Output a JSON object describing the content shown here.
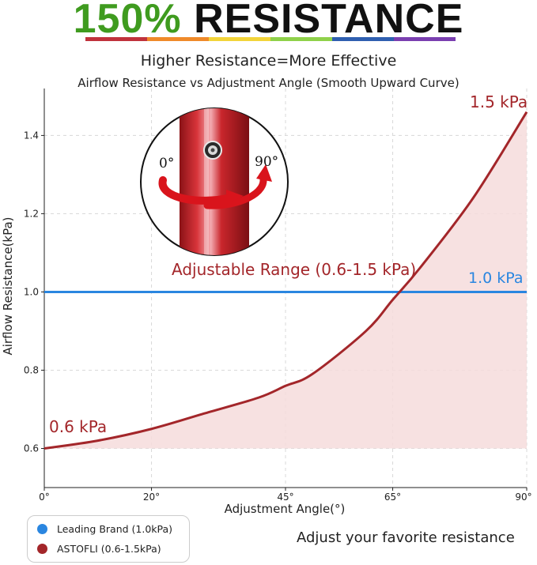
{
  "header": {
    "headline_percent": "150%",
    "headline_word": "RESISTANCE",
    "rainbow_colors": [
      "#c0323c",
      "#ef8a2a",
      "#f2d43a",
      "#8fd14a",
      "#2f5fb0",
      "#7a3fb0"
    ],
    "subtitle": "Higher Resistance=More Effective"
  },
  "chart_data": {
    "type": "line",
    "title": "Airflow Resistance vs Adjustment Angle (Smooth Upward Curve)",
    "xlabel": "Adjustment Angle(°)",
    "ylabel": "Airflow Resistance(kPa)",
    "xlim": [
      0,
      90
    ],
    "ylim": [
      0.5,
      1.52
    ],
    "xticks": [
      {
        "value": 0,
        "label": "0°"
      },
      {
        "value": 20,
        "label": "20°"
      },
      {
        "value": 45,
        "label": "45°"
      },
      {
        "value": 65,
        "label": "65°"
      },
      {
        "value": 90,
        "label": "90°"
      }
    ],
    "yticks": [
      {
        "value": 0.6,
        "label": "0.6"
      },
      {
        "value": 0.8,
        "label": "0.8"
      },
      {
        "value": 1.0,
        "label": "1.0"
      },
      {
        "value": 1.2,
        "label": "1.2"
      },
      {
        "value": 1.4,
        "label": "1.4"
      }
    ],
    "grid": true,
    "series": [
      {
        "name": "Leading Brand (1.0kPa)",
        "color": "#2a86e0",
        "x": [
          0,
          90
        ],
        "y": [
          1.0,
          1.0
        ]
      },
      {
        "name": "ASTOFLI (0.6-1.5kPa)",
        "color": "#a3262a",
        "x": [
          0,
          10,
          20,
          30,
          40,
          45,
          50,
          60,
          65,
          70,
          80,
          90
        ],
        "y": [
          0.6,
          0.62,
          0.65,
          0.69,
          0.73,
          0.76,
          0.79,
          0.9,
          0.98,
          1.06,
          1.24,
          1.46
        ]
      }
    ],
    "annotations": [
      {
        "text": "1.5 kPa",
        "color": "#a3262a"
      },
      {
        "text": "1.0 kPa",
        "color": "#2a86e0"
      },
      {
        "text": "0.6 kPa",
        "color": "#a3262a"
      },
      {
        "text": "Adjustable Range (0.6-1.5 kPa)",
        "color": "#a3262a"
      }
    ],
    "inset": {
      "left_label": "0°",
      "right_label": "90°"
    },
    "legend_position": "bottom-left"
  },
  "footer": {
    "caption": "Adjust your favorite resistance"
  }
}
